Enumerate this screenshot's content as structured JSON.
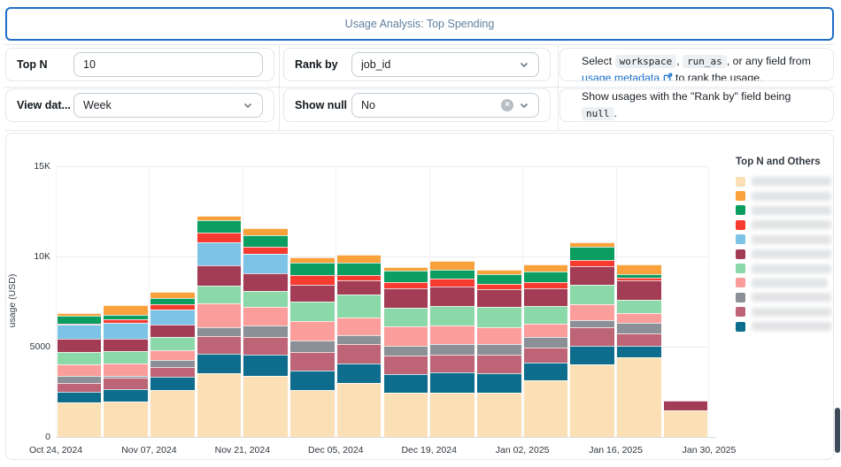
{
  "title_bar": {
    "title": "Usage Analysis: Top Spending"
  },
  "colors": {
    "title_border": "#1e6fc5",
    "title_text": "#5f7f9d",
    "link_blue": "#1b6fcb",
    "chip_bg": "#edf0f2",
    "scrollbar_thumb": "#3d4a57"
  },
  "icons": {
    "chevron_down": "chevron-down",
    "clear_circle_x": "×",
    "external_link": "external-link"
  },
  "filters": {
    "top_n": {
      "label": "Top N",
      "value": "10"
    },
    "rank_by": {
      "label": "Rank by",
      "value": "job_id"
    },
    "view_data_by": {
      "label": "View dat...",
      "value": "Week"
    },
    "show_null": {
      "label": "Show null",
      "value": "No"
    },
    "help_rank": {
      "prefix": "Select",
      "chip_workspace": "workspace",
      "comma1": ",",
      "chip_run_as": "run_as",
      "middle": ", or any field from",
      "link_text": "usage metadata",
      "suffix": "to rank the usage."
    },
    "help_null": {
      "prefix": "Show usages with the \"Rank by\" field being",
      "chip_null": "null",
      "suffix": "."
    }
  },
  "chart_data": {
    "type": "bar",
    "subtype": "stacked-weekly",
    "ylabel": "usage (USD)",
    "ylim": [
      0,
      15000
    ],
    "yticks": [
      {
        "label": "0",
        "value": 0
      },
      {
        "label": "5000",
        "value": 5000
      },
      {
        "label": "10K",
        "value": 10000
      },
      {
        "label": "15K",
        "value": 15000
      }
    ],
    "x_count": 14,
    "x_tick_labels": [
      "Oct 24, 2024",
      "Nov 07, 2024",
      "Nov 21, 2024",
      "Dec 05, 2024",
      "Dec 19, 2024",
      "Jan 02, 2025",
      "Jan 16, 2025",
      "Jan 30, 2025"
    ],
    "x_ticks_every_n_bars": 2,
    "legend_title": "Top N and Others",
    "legend_position": "right",
    "legend_labels_redacted": true,
    "grid": true,
    "stack_order_bottom_to_top": [
      "s1",
      "s11",
      "s10",
      "s9",
      "s8",
      "s7",
      "s6",
      "s5",
      "s4",
      "s3",
      "s2"
    ],
    "series": [
      {
        "id": "s1",
        "color_name": "cream",
        "color": "#fbe0b5",
        "label_redacted": true,
        "blur_width": 92,
        "values": [
          1900,
          1980,
          2580,
          3530,
          3370,
          2580,
          2990,
          2450,
          2450,
          2450,
          3150,
          4000,
          4430,
          1470
        ]
      },
      {
        "id": "s2",
        "color_name": "orange",
        "color": "#f9a23c",
        "label_redacted": true,
        "blur_width": 96,
        "values": [
          170,
          525,
          330,
          230,
          380,
          280,
          430,
          210,
          460,
          210,
          390,
          260,
          555,
          0
        ]
      },
      {
        "id": "s3",
        "color_name": "green",
        "color": "#0b9e60",
        "label_redacted": true,
        "blur_width": 108,
        "values": [
          425,
          245,
          330,
          700,
          650,
          700,
          690,
          610,
          490,
          540,
          590,
          720,
          165,
          0
        ]
      },
      {
        "id": "s4",
        "color_name": "red",
        "color": "#f73b31",
        "label_redacted": true,
        "blur_width": 98,
        "values": [
          50,
          210,
          280,
          540,
          380,
          560,
          290,
          380,
          460,
          330,
          330,
          380,
          165,
          0
        ]
      },
      {
        "id": "s5",
        "color_name": "light-blue",
        "color": "#7cc3e6",
        "label_redacted": true,
        "blur_width": 102,
        "values": [
          785,
          850,
          870,
          1290,
          1050,
          0,
          0,
          0,
          0,
          0,
          0,
          0,
          0,
          0
        ]
      },
      {
        "id": "s6",
        "color_name": "maroon",
        "color": "#a33d55",
        "label_redacted": true,
        "blur_width": 104,
        "values": [
          735,
          690,
          690,
          1110,
          1000,
          915,
          770,
          1060,
          1050,
          980,
          980,
          1030,
          1080,
          520
        ]
      },
      {
        "id": "s7",
        "color_name": "light-green",
        "color": "#8bd8a8",
        "label_redacted": true,
        "blur_width": 96,
        "values": [
          700,
          700,
          735,
          980,
          900,
          1100,
          1260,
          1010,
          1110,
          1100,
          980,
          1050,
          720,
          0
        ]
      },
      {
        "id": "s8",
        "color_name": "salmon",
        "color": "#fb9d9b",
        "label_redacted": true,
        "blur_width": 86,
        "values": [
          655,
          700,
          540,
          1310,
          1010,
          1060,
          980,
          1080,
          1010,
          930,
          770,
          915,
          540,
          0
        ]
      },
      {
        "id": "s9",
        "color_name": "gray",
        "color": "#8a9096",
        "label_redacted": true,
        "blur_width": 106,
        "values": [
          360,
          80,
          360,
          490,
          650,
          650,
          490,
          560,
          590,
          620,
          570,
          390,
          605,
          0
        ]
      },
      {
        "id": "s10",
        "color_name": "rose",
        "color": "#bd6476",
        "label_redacted": true,
        "blur_width": 90,
        "values": [
          520,
          620,
          570,
          980,
          980,
          1010,
          1080,
          1030,
          1010,
          1010,
          820,
          1030,
          700,
          0
        ]
      },
      {
        "id": "s11",
        "color_name": "dark-teal",
        "color": "#0e6d8c",
        "label_redacted": true,
        "blur_width": 98,
        "values": [
          590,
          690,
          735,
          1090,
          1180,
          1110,
          1100,
          1030,
          1110,
          1080,
          980,
          1030,
          605,
          0
        ]
      }
    ]
  }
}
